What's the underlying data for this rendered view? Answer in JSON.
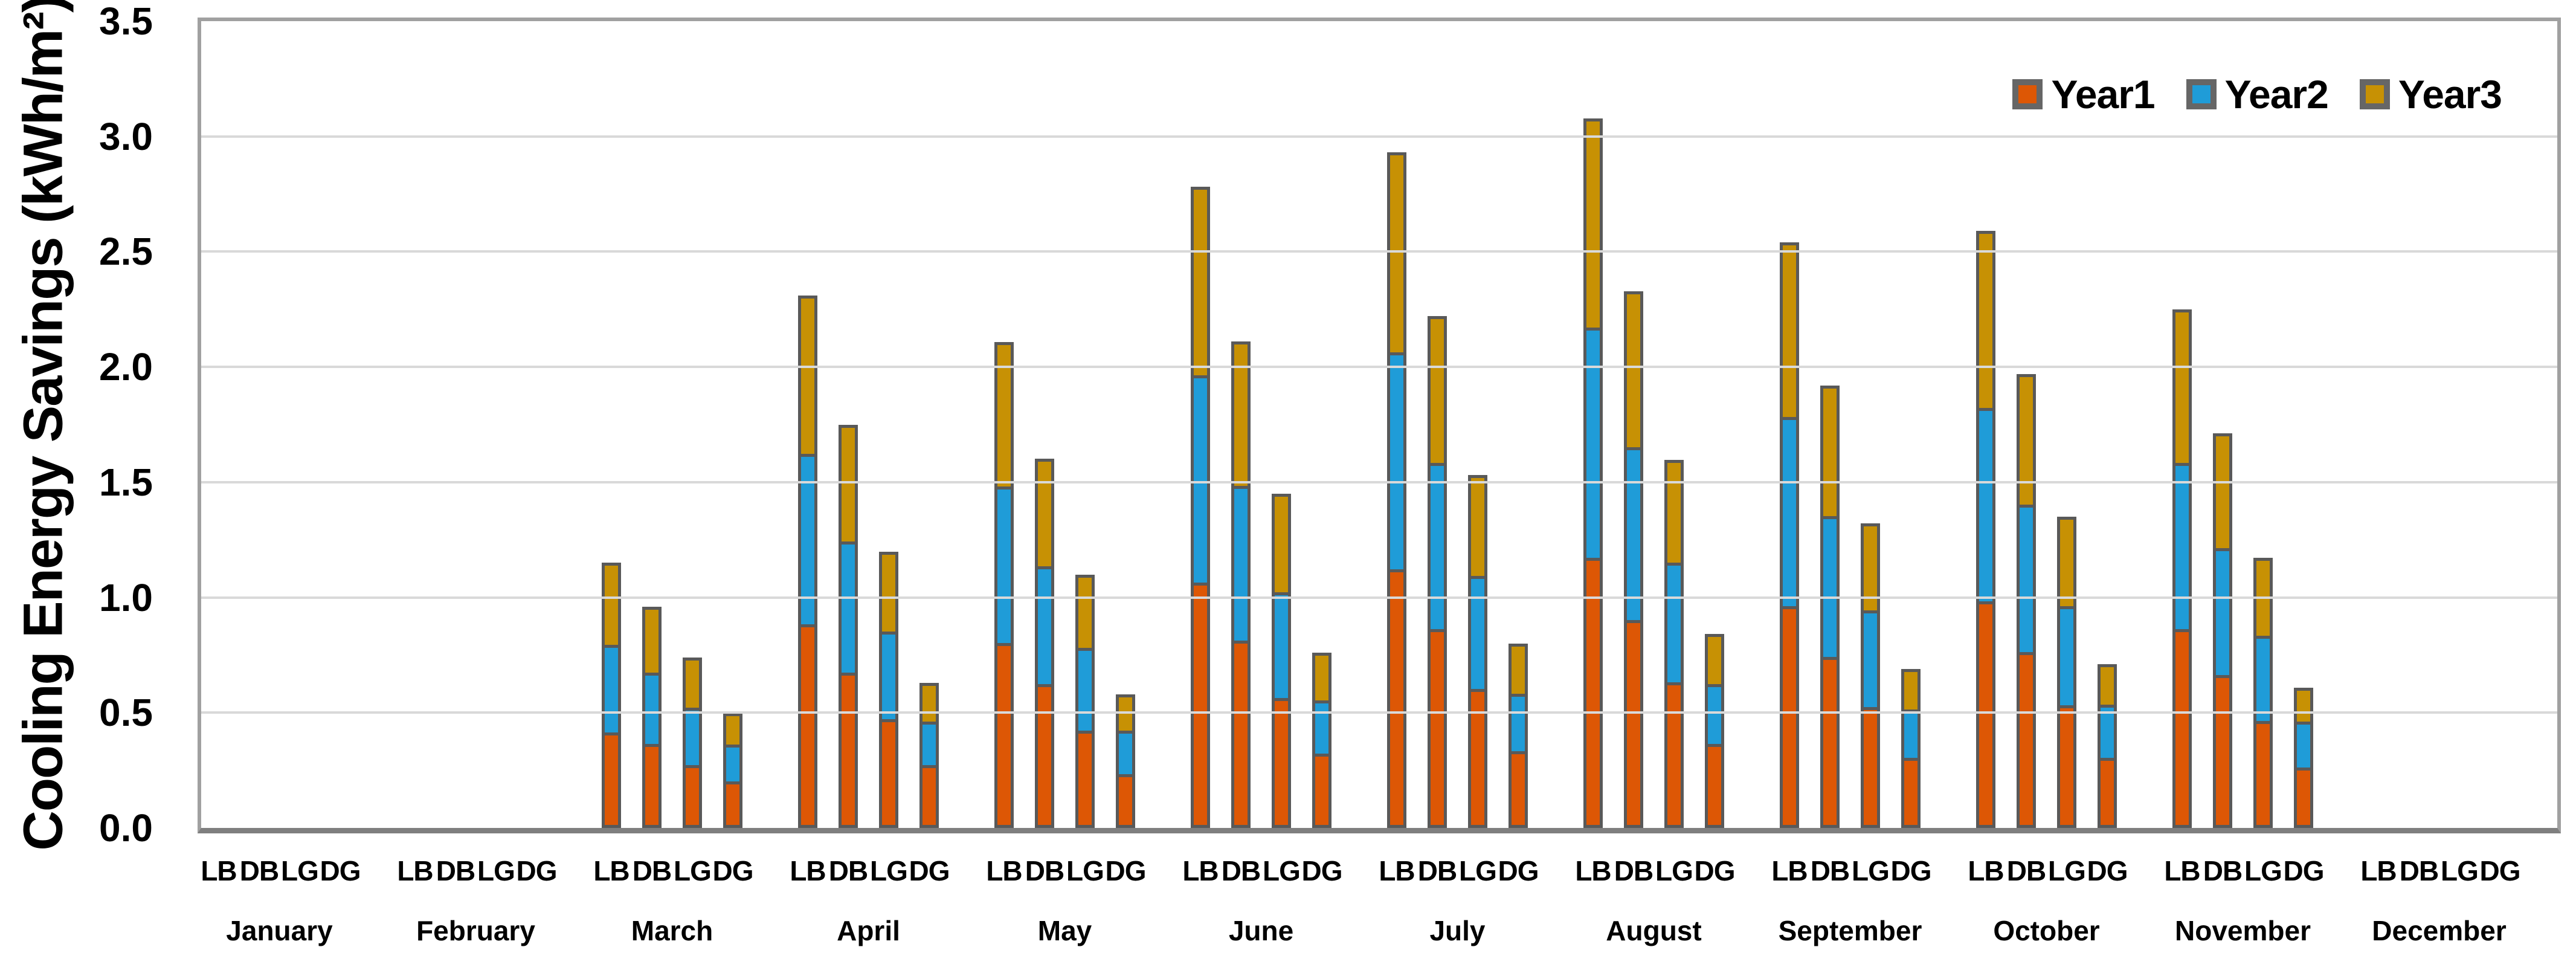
{
  "colors": {
    "series_colors": [
      "#DD5705",
      "#1F9CD8",
      "#C79104"
    ],
    "bar_border": "#595959",
    "gridline": "#D9D9D9",
    "plot_border": "#A0A0A0",
    "axis_line": "#7F7F7F",
    "text": "#000000"
  },
  "y_axis": {
    "tick_labels": [
      "0.0",
      "0.5",
      "1.0",
      "1.5",
      "2.0",
      "2.5",
      "3.0",
      "3.5"
    ]
  },
  "chart_data": {
    "type": "bar",
    "stacked": true,
    "title": "",
    "xlabel": "",
    "ylabel": "Cooling Energy Savings (kWh/m²)",
    "ylim": [
      0,
      3.5
    ],
    "ytick_step": 0.5,
    "grid": true,
    "legend_position": "top-right-inside",
    "categories": [
      "January",
      "February",
      "March",
      "April",
      "May",
      "June",
      "July",
      "August",
      "September",
      "October",
      "November",
      "December"
    ],
    "sub_categories": [
      "LB",
      "DB",
      "LG",
      "DG"
    ],
    "series": [
      {
        "name": "Year1",
        "values": [
          [
            0,
            0,
            0,
            0
          ],
          [
            0,
            0,
            0,
            0
          ],
          [
            0.4,
            0.35,
            0.26,
            0.19
          ],
          [
            0.87,
            0.66,
            0.46,
            0.26
          ],
          [
            0.79,
            0.61,
            0.41,
            0.22
          ],
          [
            1.05,
            0.8,
            0.55,
            0.31
          ],
          [
            1.11,
            0.85,
            0.59,
            0.32
          ],
          [
            1.16,
            0.89,
            0.62,
            0.35
          ],
          [
            0.95,
            0.73,
            0.51,
            0.29
          ],
          [
            0.97,
            0.75,
            0.52,
            0.29
          ],
          [
            0.85,
            0.65,
            0.45,
            0.25
          ],
          [
            0,
            0,
            0,
            0
          ]
        ]
      },
      {
        "name": "Year2",
        "values": [
          [
            0,
            0,
            0,
            0
          ],
          [
            0,
            0,
            0,
            0
          ],
          [
            0.38,
            0.31,
            0.25,
            0.16
          ],
          [
            0.74,
            0.57,
            0.38,
            0.19
          ],
          [
            0.68,
            0.51,
            0.36,
            0.19
          ],
          [
            0.9,
            0.67,
            0.46,
            0.23
          ],
          [
            0.94,
            0.72,
            0.49,
            0.25
          ],
          [
            1.0,
            0.75,
            0.52,
            0.26
          ],
          [
            0.82,
            0.61,
            0.42,
            0.21
          ],
          [
            0.84,
            0.64,
            0.43,
            0.23
          ],
          [
            0.72,
            0.55,
            0.37,
            0.2
          ],
          [
            0,
            0,
            0,
            0
          ]
        ]
      },
      {
        "name": "Year3",
        "values": [
          [
            0,
            0,
            0,
            0
          ],
          [
            0,
            0,
            0,
            0
          ],
          [
            0.37,
            0.3,
            0.23,
            0.15
          ],
          [
            0.7,
            0.52,
            0.36,
            0.18
          ],
          [
            0.64,
            0.48,
            0.33,
            0.17
          ],
          [
            0.83,
            0.64,
            0.44,
            0.22
          ],
          [
            0.88,
            0.65,
            0.45,
            0.23
          ],
          [
            0.92,
            0.69,
            0.46,
            0.23
          ],
          [
            0.77,
            0.58,
            0.39,
            0.19
          ],
          [
            0.78,
            0.58,
            0.4,
            0.19
          ],
          [
            0.68,
            0.51,
            0.35,
            0.16
          ],
          [
            0,
            0,
            0,
            0
          ]
        ]
      }
    ]
  }
}
